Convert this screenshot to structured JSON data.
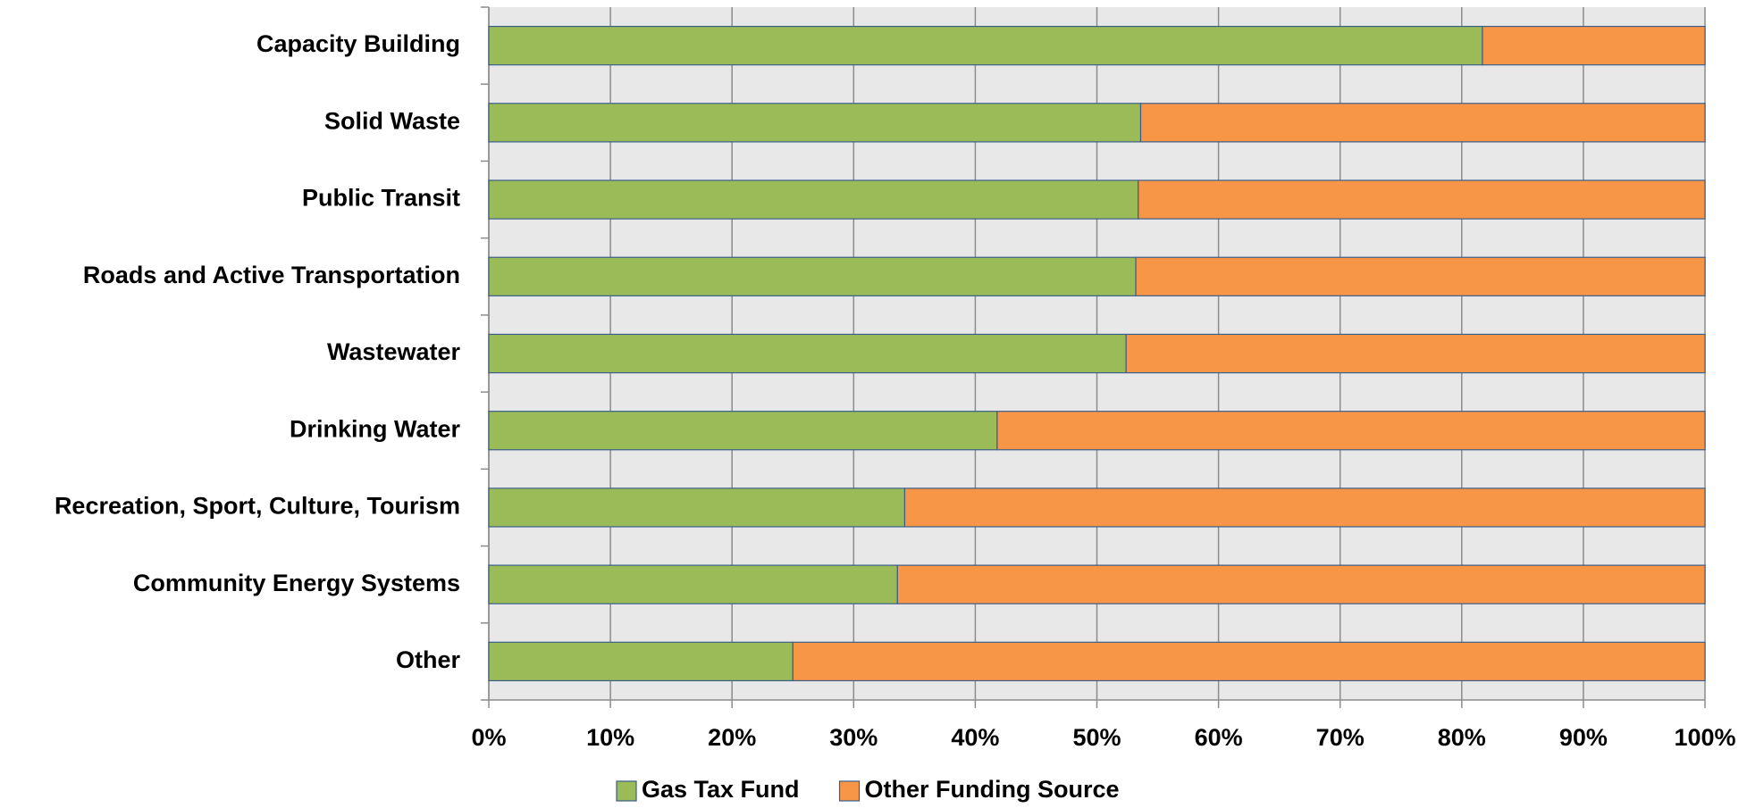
{
  "chart_data": {
    "type": "stacked_barh",
    "categories": [
      "Capacity Building",
      "Solid Waste",
      "Public Transit",
      "Roads and Active Transportation",
      "Wastewater",
      "Drinking Water",
      "Recreation, Sport, Culture, Tourism",
      "Community Energy Systems",
      "Other"
    ],
    "series": [
      {
        "name": "Gas Tax Fund",
        "color": "#9bbb59",
        "values": [
          81.7,
          53.6,
          53.4,
          53.2,
          52.4,
          41.8,
          34.2,
          33.6,
          25.0
        ]
      },
      {
        "name": "Other Funding Source",
        "color": "#f79646",
        "values": [
          18.3,
          46.4,
          46.6,
          46.8,
          47.6,
          58.2,
          65.8,
          66.4,
          75.0
        ]
      }
    ],
    "xlim": [
      0,
      100
    ],
    "xticks": [
      {
        "value": 0,
        "label": "0%"
      },
      {
        "value": 10,
        "label": "10%"
      },
      {
        "value": 20,
        "label": "20%"
      },
      {
        "value": 30,
        "label": "30%"
      },
      {
        "value": 40,
        "label": "40%"
      },
      {
        "value": 50,
        "label": "50%"
      },
      {
        "value": 60,
        "label": "60%"
      },
      {
        "value": 70,
        "label": "70%"
      },
      {
        "value": 80,
        "label": "80%"
      },
      {
        "value": 90,
        "label": "90%"
      },
      {
        "value": 100,
        "label": "100%"
      }
    ],
    "grid": true,
    "legend": "bottom"
  }
}
